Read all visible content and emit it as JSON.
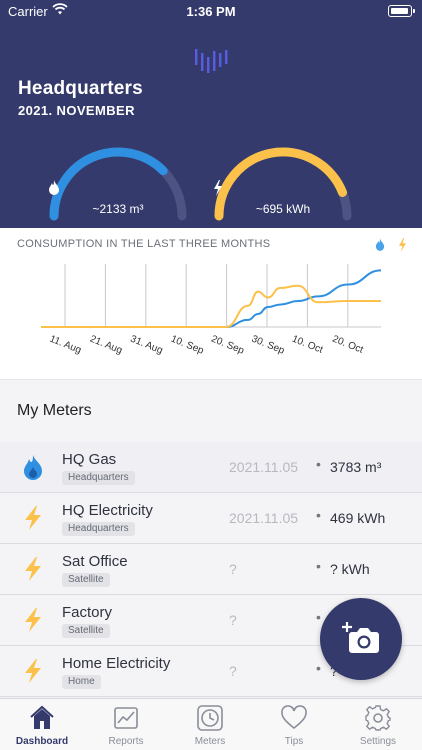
{
  "status_bar": {
    "carrier": "Carrier",
    "time": "1:36 PM"
  },
  "header": {
    "title": "Headquarters",
    "subtitle": "2021. NOVEMBER"
  },
  "gauges": [
    {
      "icon": "flame-icon",
      "value": "~2133 m³",
      "color": "#2f8fe0",
      "level": 0.75
    },
    {
      "icon": "bolt-icon",
      "value": "~695 kWh",
      "color": "#fbc14a",
      "level": 0.88
    }
  ],
  "chart_data": {
    "type": "line",
    "title": "CONSUMPTION IN THE LAST THREE MONTHS",
    "categories": [
      "11. Aug",
      "21. Aug",
      "31. Aug",
      "10. Sep",
      "20. Sep",
      "30. Sep",
      "10. Oct",
      "20. Oct"
    ],
    "x": [
      "11. Aug",
      "21. Aug",
      "31. Aug",
      "10. Sep",
      "20. Sep",
      "30. Sep",
      "3. Oct",
      "7. Oct",
      "10. Oct",
      "15. Oct",
      "20. Oct",
      "25. Oct",
      "30. Oct",
      "4. Nov"
    ],
    "series": [
      {
        "icon": "flame-icon",
        "color": "#2f8fe0",
        "values": [
          0,
          0,
          0,
          0,
          0,
          0,
          6,
          11,
          17,
          19,
          22,
          26,
          36,
          48
        ]
      },
      {
        "icon": "bolt-icon",
        "color": "#fbc14a",
        "values": [
          0,
          0,
          0,
          0,
          0,
          0,
          18,
          30,
          25,
          33,
          35,
          21,
          22,
          22
        ]
      }
    ],
    "grid": true
  },
  "meters": {
    "title": "My Meters",
    "items": [
      {
        "icon": "flame-icon",
        "name": "HQ Gas",
        "tag": "Headquarters",
        "date": "2021.11.05",
        "dot": "•",
        "value": "3783 m³"
      },
      {
        "icon": "bolt-icon",
        "name": "HQ Electricity",
        "tag": "Headquarters",
        "date": "2021.11.05",
        "dot": "•",
        "value": "469 kWh"
      },
      {
        "icon": "bolt-icon",
        "name": "Sat Office",
        "tag": "Satellite",
        "date": "?",
        "dot": "•",
        "value": "? kWh"
      },
      {
        "icon": "bolt-icon",
        "name": "Factory",
        "tag": "Satellite",
        "date": "?",
        "dot": "•",
        "value": ""
      },
      {
        "icon": "bolt-icon",
        "name": "Home Electricity",
        "tag": "Home",
        "date": "?",
        "dot": "•",
        "value": "?"
      }
    ]
  },
  "tabs": [
    {
      "label": "Dashboard",
      "icon": "house-icon",
      "active": true
    },
    {
      "label": "Reports",
      "icon": "chart-icon",
      "active": false
    },
    {
      "label": "Meters",
      "icon": "meter-icon",
      "active": false
    },
    {
      "label": "Tips",
      "icon": "heart-icon",
      "active": false
    },
    {
      "label": "Settings",
      "icon": "gear-icon",
      "active": false
    }
  ]
}
